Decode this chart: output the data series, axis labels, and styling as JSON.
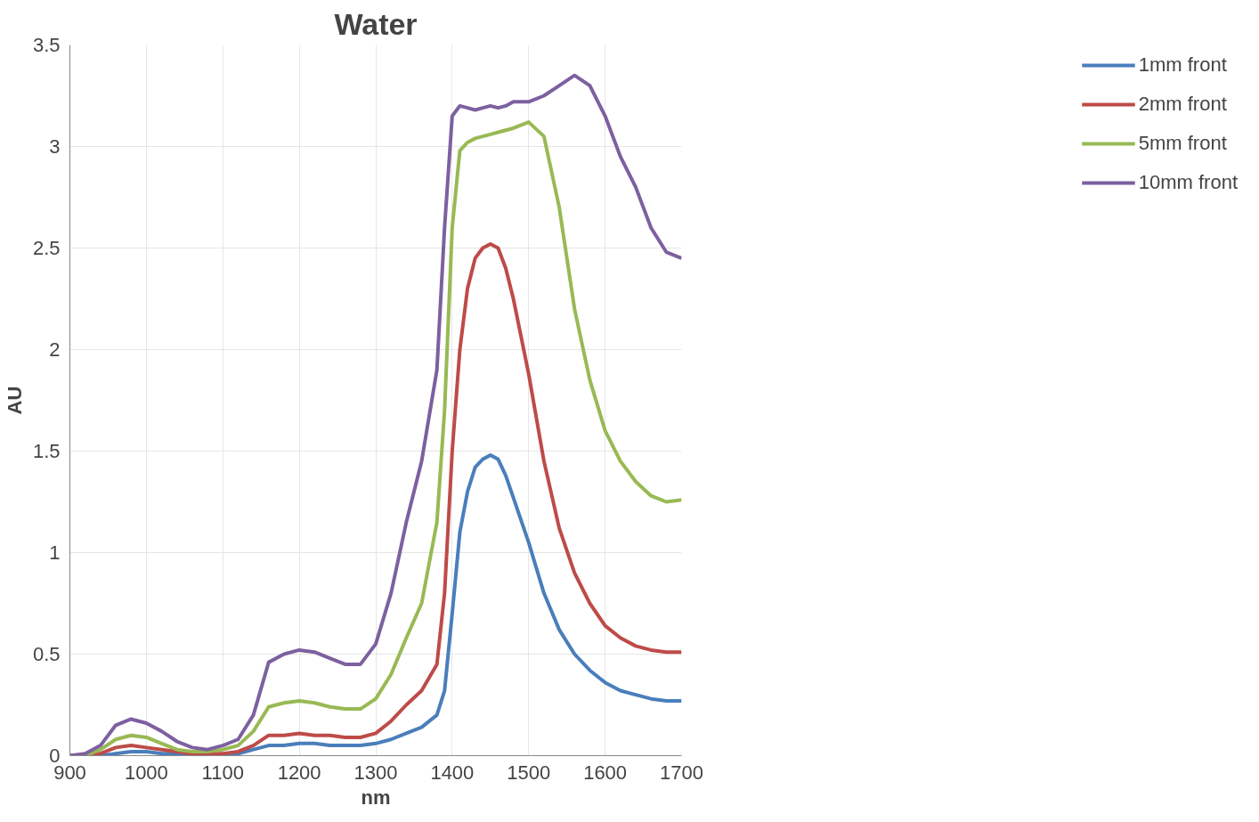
{
  "chart_data": {
    "type": "line",
    "title": "Water",
    "xlabel": "nm",
    "ylabel": "AU",
    "x": [
      900,
      920,
      940,
      960,
      980,
      1000,
      1020,
      1040,
      1060,
      1080,
      1100,
      1120,
      1140,
      1160,
      1180,
      1200,
      1220,
      1240,
      1260,
      1280,
      1300,
      1320,
      1340,
      1360,
      1380,
      1390,
      1400,
      1410,
      1420,
      1430,
      1440,
      1450,
      1460,
      1470,
      1480,
      1500,
      1520,
      1540,
      1560,
      1580,
      1600,
      1620,
      1640,
      1660,
      1680,
      1700
    ],
    "series": [
      {
        "name": "1mm front",
        "color": "#4a7ebb",
        "values": [
          0,
          0,
          0,
          0.01,
          0.02,
          0.02,
          0.01,
          0.01,
          0,
          0,
          0,
          0.01,
          0.03,
          0.05,
          0.05,
          0.06,
          0.06,
          0.05,
          0.05,
          0.05,
          0.06,
          0.08,
          0.11,
          0.14,
          0.2,
          0.32,
          0.7,
          1.1,
          1.3,
          1.42,
          1.46,
          1.48,
          1.46,
          1.38,
          1.27,
          1.05,
          0.8,
          0.62,
          0.5,
          0.42,
          0.36,
          0.32,
          0.3,
          0.28,
          0.27,
          0.27
        ]
      },
      {
        "name": "2mm front",
        "color": "#be4b48",
        "values": [
          0,
          0,
          0.01,
          0.04,
          0.05,
          0.04,
          0.03,
          0.02,
          0.01,
          0.01,
          0.01,
          0.02,
          0.05,
          0.1,
          0.1,
          0.11,
          0.1,
          0.1,
          0.09,
          0.09,
          0.11,
          0.17,
          0.25,
          0.32,
          0.45,
          0.8,
          1.5,
          2.0,
          2.3,
          2.45,
          2.5,
          2.52,
          2.5,
          2.4,
          2.25,
          1.88,
          1.45,
          1.12,
          0.9,
          0.75,
          0.64,
          0.58,
          0.54,
          0.52,
          0.51,
          0.51
        ]
      },
      {
        "name": "5mm front",
        "color": "#98b954",
        "values": [
          0,
          0,
          0.03,
          0.08,
          0.1,
          0.09,
          0.06,
          0.03,
          0.02,
          0.02,
          0.03,
          0.05,
          0.12,
          0.24,
          0.26,
          0.27,
          0.26,
          0.24,
          0.23,
          0.23,
          0.28,
          0.4,
          0.58,
          0.75,
          1.15,
          1.7,
          2.6,
          2.98,
          3.02,
          3.04,
          3.05,
          3.06,
          3.07,
          3.08,
          3.09,
          3.12,
          3.05,
          2.7,
          2.2,
          1.85,
          1.6,
          1.45,
          1.35,
          1.28,
          1.25,
          1.26
        ]
      },
      {
        "name": "10mm front",
        "color": "#7d60a0",
        "values": [
          0,
          0.01,
          0.05,
          0.15,
          0.18,
          0.16,
          0.12,
          0.07,
          0.04,
          0.03,
          0.05,
          0.08,
          0.2,
          0.46,
          0.5,
          0.52,
          0.51,
          0.48,
          0.45,
          0.45,
          0.55,
          0.8,
          1.15,
          1.45,
          1.9,
          2.6,
          3.15,
          3.2,
          3.19,
          3.18,
          3.19,
          3.2,
          3.19,
          3.2,
          3.22,
          3.22,
          3.25,
          3.3,
          3.35,
          3.3,
          3.15,
          2.95,
          2.8,
          2.6,
          2.48,
          2.45
        ]
      }
    ],
    "xlim": [
      900,
      1700
    ],
    "ylim": [
      0,
      3.5
    ],
    "xticks": [
      900,
      1000,
      1100,
      1200,
      1300,
      1400,
      1500,
      1600,
      1700
    ],
    "yticks": [
      0,
      0.5,
      1,
      1.5,
      2,
      2.5,
      3,
      3.5
    ],
    "grid": true,
    "legend": "right",
    "marker": "none",
    "line_style": "solid"
  }
}
